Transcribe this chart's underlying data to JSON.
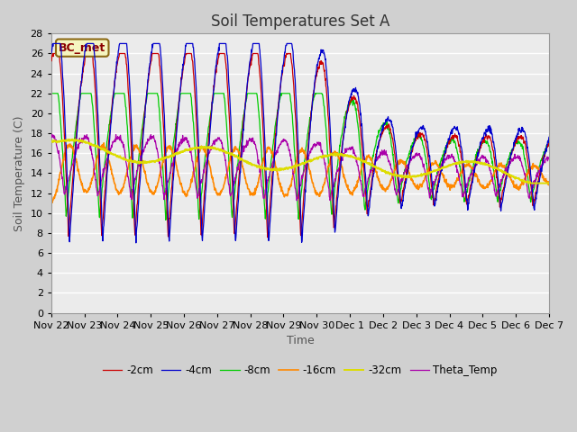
{
  "title": "Soil Temperatures Set A",
  "xlabel": "Time",
  "ylabel": "Soil Temperature (C)",
  "annotation": "BC_met",
  "ylim": [
    0,
    28
  ],
  "yticks": [
    0,
    2,
    4,
    6,
    8,
    10,
    12,
    14,
    16,
    18,
    20,
    22,
    24,
    26,
    28
  ],
  "line_colors": {
    "-2cm": "#cc0000",
    "-4cm": "#0000cc",
    "-8cm": "#00cc00",
    "-16cm": "#ff8800",
    "-32cm": "#dddd00",
    "Theta_Temp": "#aa00aa"
  },
  "legend_labels": [
    "-2cm",
    "-4cm",
    "-8cm",
    "-16cm",
    "-32cm",
    "Theta_Temp"
  ],
  "fig_bg_color": "#d0d0d0",
  "plot_bg_color": "#ebebeb",
  "grid_color": "#ffffff",
  "title_fontsize": 12,
  "axis_label_fontsize": 9,
  "tick_fontsize": 8,
  "annotation_fontsize": 9,
  "annotation_color": "#8b0000",
  "annotation_bg": "#f5f5c0",
  "annotation_edge": "#8b6914"
}
